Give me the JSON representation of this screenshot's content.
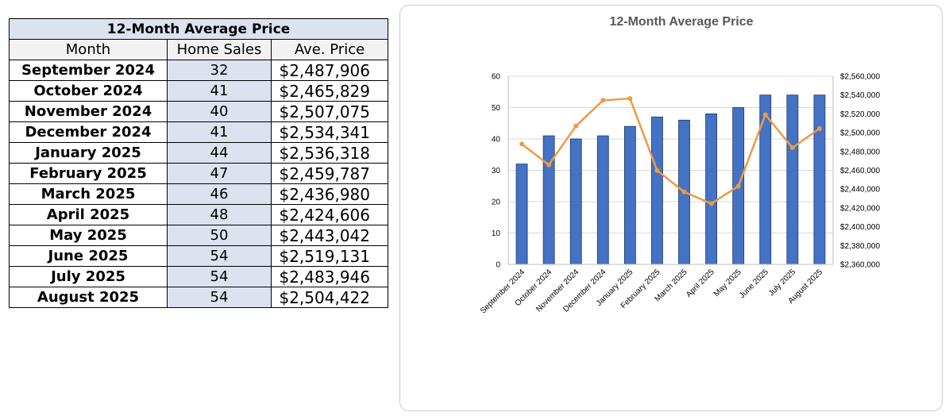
{
  "table": {
    "title": "12-Month Average Price",
    "headers": [
      "Month",
      "Home Sales",
      "Ave. Price"
    ],
    "rows": [
      {
        "month": "September 2024",
        "sales": "32",
        "price": "$2,487,906"
      },
      {
        "month": "October 2024",
        "sales": "41",
        "price": "$2,465,829"
      },
      {
        "month": "November 2024",
        "sales": "40",
        "price": "$2,507,075"
      },
      {
        "month": "December 2024",
        "sales": "41",
        "price": "$2,534,341"
      },
      {
        "month": "January 2025",
        "sales": "44",
        "price": "$2,536,318"
      },
      {
        "month": "February 2025",
        "sales": "47",
        "price": "$2,459,787"
      },
      {
        "month": "March 2025",
        "sales": "46",
        "price": "$2,436,980"
      },
      {
        "month": "April 2025",
        "sales": "48",
        "price": "$2,424,606"
      },
      {
        "month": "May 2025",
        "sales": "50",
        "price": "$2,443,042"
      },
      {
        "month": "June 2025",
        "sales": "54",
        "price": "$2,519,131"
      },
      {
        "month": "July 2025",
        "sales": "54",
        "price": "$2,483,946"
      },
      {
        "month": "August 2025",
        "sales": "54",
        "price": "$2,504,422"
      }
    ]
  },
  "chart_data": {
    "type": "bar",
    "title": "12-Month Average Price",
    "categories": [
      "September 2024",
      "October 2024",
      "November 2024",
      "December 2024",
      "January 2025",
      "February 2025",
      "March 2025",
      "April 2025",
      "May 2025",
      "June 2025",
      "July 2025",
      "August 2025"
    ],
    "series": [
      {
        "kind": "bar",
        "axis": "left",
        "color": "#4472c4",
        "values": [
          32,
          41,
          40,
          41,
          44,
          47,
          46,
          48,
          50,
          54,
          54,
          54
        ]
      },
      {
        "kind": "line",
        "axis": "right",
        "color": "#ed9a46",
        "values": [
          2487906,
          2465829,
          2507075,
          2534341,
          2536318,
          2459787,
          2436980,
          2424606,
          2443042,
          2519131,
          2483946,
          2504422
        ]
      }
    ],
    "ylim": [
      0,
      60
    ],
    "yticks": [
      "0",
      "10",
      "20",
      "30",
      "40",
      "50",
      "60"
    ],
    "y2lim": [
      2360000,
      2560000
    ],
    "y2ticks": [
      "$2,360,000",
      "$2,380,000",
      "$2,400,000",
      "$2,420,000",
      "$2,440,000",
      "$2,460,000",
      "$2,480,000",
      "$2,500,000",
      "$2,520,000",
      "$2,540,000",
      "$2,560,000"
    ],
    "grid": true,
    "legend": "none"
  }
}
